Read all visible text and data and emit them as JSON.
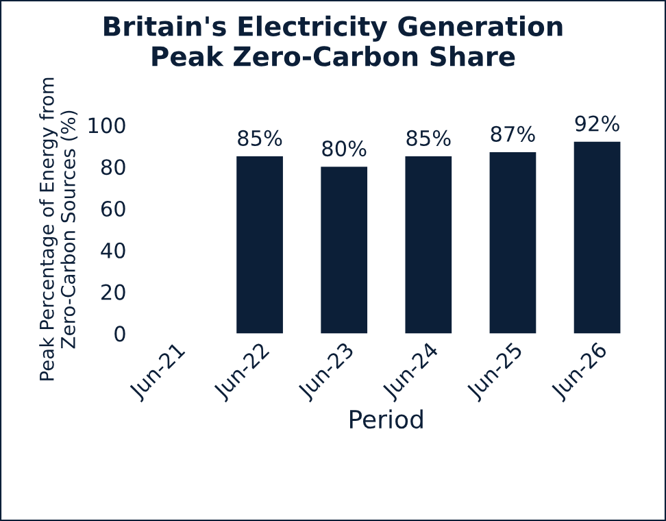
{
  "chart_data": {
    "type": "bar",
    "title": "Britain's Electricity Generation\nPeak Zero-Carbon Share",
    "xlabel": "Period",
    "ylabel": "Peak Percentage of Energy from\nZero-Carbon Sources (%)",
    "categories": [
      "Jun-21",
      "Jun-22",
      "Jun-23",
      "Jun-24",
      "Jun-25",
      "Jun-26"
    ],
    "values": [
      null,
      85,
      80,
      85,
      87,
      92
    ],
    "value_labels": [
      null,
      "85%",
      "80%",
      "85%",
      "87%",
      "92%"
    ],
    "color": "#0c1f38",
    "ylim": [
      0,
      100
    ],
    "yticks": [
      0,
      20,
      40,
      60,
      80,
      100
    ],
    "grid": false,
    "legend": false
  }
}
